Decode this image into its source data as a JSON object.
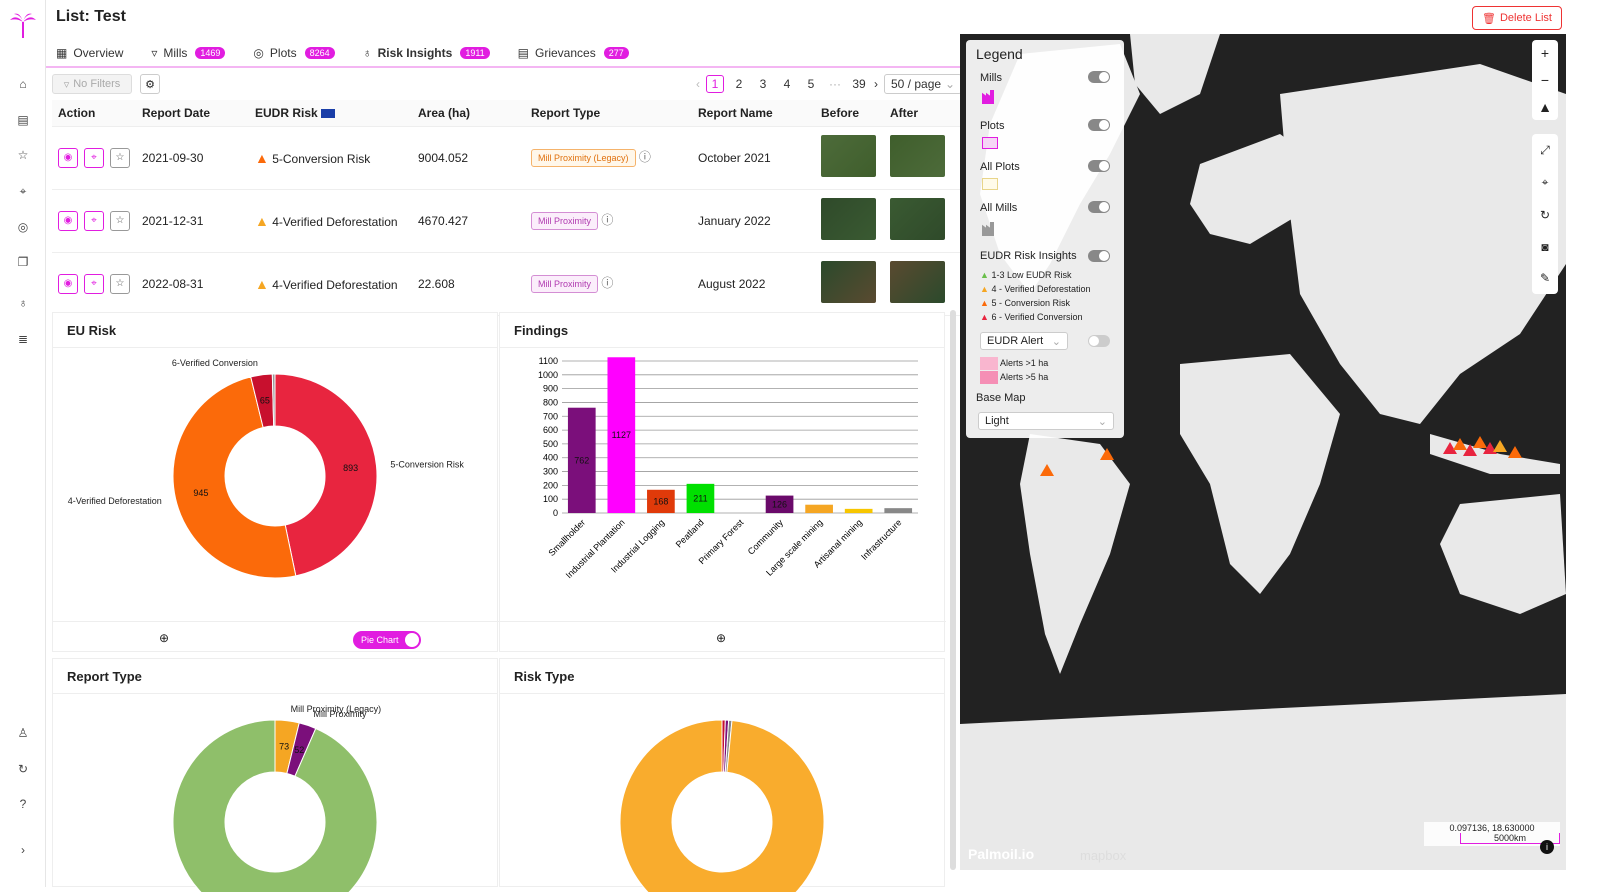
{
  "page": {
    "title": "List: Test",
    "delete_label": "Delete List"
  },
  "tabs": [
    {
      "label": "Overview",
      "badge": ""
    },
    {
      "label": "Mills",
      "badge": "1469"
    },
    {
      "label": "Plots",
      "badge": "8264"
    },
    {
      "label": "Risk Insights",
      "badge": "1911"
    },
    {
      "label": "Grievances",
      "badge": "277"
    }
  ],
  "filters": {
    "no_filters": "No Filters"
  },
  "pager": {
    "pages": [
      "1",
      "2",
      "3",
      "4",
      "5",
      "···",
      "39"
    ],
    "page_size": "50 / page",
    "current": "1"
  },
  "table": {
    "headers": [
      "Action",
      "Report Date",
      "EUDR Risk",
      "Area (ha)",
      "Report Type",
      "Report Name",
      "Before",
      "After"
    ],
    "rows": [
      {
        "date": "2021-09-30",
        "risk": "5-Conversion Risk",
        "area": "9004.052",
        "type": "Mill Proximity (Legacy)",
        "name": "October 2021"
      },
      {
        "date": "2021-12-31",
        "risk": "4-Verified Deforestation",
        "area": "4670.427",
        "type": "Mill Proximity",
        "name": "January 2022"
      },
      {
        "date": "2022-08-31",
        "risk": "4-Verified Deforestation",
        "area": "22.608",
        "type": "Mill Proximity",
        "name": "August 2022"
      }
    ]
  },
  "panels": {
    "eu_risk": "EU Risk",
    "findings": "Findings",
    "report_type": "Report Type",
    "risk_type": "Risk Type",
    "pie_toggle": "Pie Chart"
  },
  "chart_data": [
    {
      "type": "pie",
      "title": "EU Risk",
      "categories": [
        "5-Conversion Risk",
        "4-Verified Deforestation",
        "6-Verified Conversion",
        ""
      ],
      "values": [
        893,
        945,
        65,
        8
      ],
      "colors": [
        "#e8253f",
        "#fb6a0a",
        "#c8102e",
        "#999999"
      ]
    },
    {
      "type": "bar",
      "title": "Findings",
      "categories": [
        "Smallholder",
        "Industrial Plantation",
        "Industrial Logging",
        "Peatland",
        "Primary Forest",
        "Community",
        "Large scale mining",
        "Artisanal mining",
        "Infrastructure"
      ],
      "values": [
        762,
        1127,
        168,
        211,
        0,
        126,
        60,
        30,
        35
      ],
      "value_labels": [
        "762",
        "1127",
        "168",
        "211",
        "",
        "126",
        "",
        "",
        ""
      ],
      "colors": [
        "#7b0f7b",
        "#ff00ff",
        "#e03a0a",
        "#00e000",
        "#00a000",
        "#6a0a6a",
        "#f5a623",
        "#f7c600",
        "#888888"
      ],
      "ylim": [
        0,
        1100
      ],
      "yticks": [
        0,
        100,
        200,
        300,
        400,
        500,
        600,
        700,
        800,
        900,
        1000,
        1100
      ]
    },
    {
      "type": "pie",
      "title": "Report Type",
      "categories": [
        "Mill Proximity (Legacy)",
        "Mill Proximity",
        ""
      ],
      "values": [
        73,
        52,
        1786
      ],
      "colors": [
        "#f5a623",
        "#7b0f7b",
        "#8fbf6a"
      ]
    },
    {
      "type": "pie",
      "title": "Risk Type",
      "categories": [
        "",
        "",
        "",
        ""
      ],
      "values": [
        10,
        10,
        10,
        1891
      ],
      "colors": [
        "#c8102e",
        "#7b0f7b",
        "#888888",
        "#f9ac2d"
      ]
    }
  ],
  "legend": {
    "title": "Legend",
    "items": [
      "Mills",
      "Plots",
      "All Plots",
      "All Mills",
      "EUDR Risk Insights"
    ],
    "risk_levels": [
      "1-3 Low EUDR Risk",
      "4 - Verified Deforestation",
      "5 - Conversion Risk",
      "6 - Verified Conversion"
    ],
    "alert_select": "EUDR Alert",
    "alerts": [
      "Alerts >1 ha",
      "Alerts >5 ha"
    ],
    "basemap_label": "Base Map",
    "basemap_value": "Light"
  },
  "map": {
    "coords": "0.097136, 18.630000",
    "scale": "5000km",
    "brand": "Palmoil.io",
    "mapbox": "mapbox"
  }
}
